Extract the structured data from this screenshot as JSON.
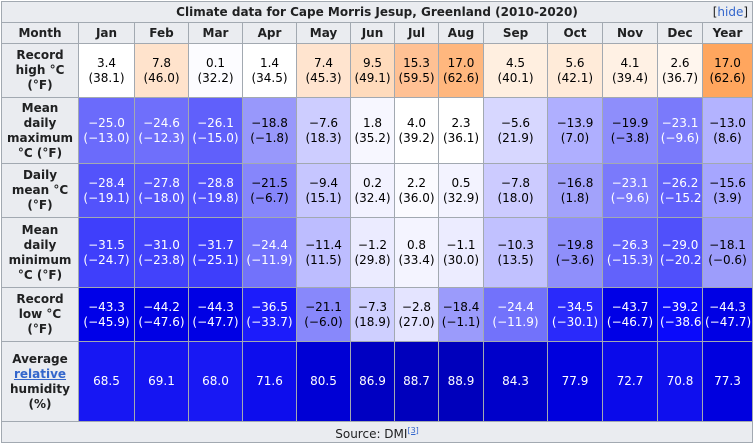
{
  "title": "Climate data for Cape Morris Jesup, Greenland (2010-2020)",
  "hide_label": "hide",
  "header": {
    "month": "Month",
    "months": [
      "Jan",
      "Feb",
      "Mar",
      "Apr",
      "May",
      "Jun",
      "Jul",
      "Aug",
      "Sep",
      "Oct",
      "Nov",
      "Dec",
      "Year"
    ]
  },
  "rows": [
    {
      "label_lines": [
        "Record",
        "high °C",
        "(°F)"
      ],
      "link_line": -1,
      "cells": [
        {
          "c": "3.4",
          "f": "(38.1)",
          "bg": "#ffffff",
          "fg": "#000000"
        },
        {
          "c": "7.8",
          "f": "(46.0)",
          "bg": "#ffe3cc",
          "fg": "#000000"
        },
        {
          "c": "0.1",
          "f": "(32.2)",
          "bg": "#fcfcff",
          "fg": "#000000"
        },
        {
          "c": "1.4",
          "f": "(34.5)",
          "bg": "#ffffff",
          "fg": "#000000"
        },
        {
          "c": "7.4",
          "f": "(45.3)",
          "bg": "#ffe4cf",
          "fg": "#000000"
        },
        {
          "c": "9.5",
          "f": "(49.1)",
          "bg": "#ffdbbc",
          "fg": "#000000"
        },
        {
          "c": "15.3",
          "f": "(59.5)",
          "bg": "#ffc194",
          "fg": "#000000"
        },
        {
          "c": "17.0",
          "f": "(62.6)",
          "bg": "#ffb77e",
          "fg": "#000000"
        },
        {
          "c": "4.5",
          "f": "(40.1)",
          "bg": "#ffefe0",
          "fg": "#000000"
        },
        {
          "c": "5.6",
          "f": "(42.1)",
          "bg": "#ffebd9",
          "fg": "#000000"
        },
        {
          "c": "4.1",
          "f": "(39.4)",
          "bg": "#fff1e4",
          "fg": "#000000"
        },
        {
          "c": "2.6",
          "f": "(36.7)",
          "bg": "#fff6ee",
          "fg": "#000000"
        },
        {
          "c": "17.0",
          "f": "(62.6)",
          "bg": "#ffa65e",
          "fg": "#000000"
        }
      ]
    },
    {
      "label_lines": [
        "Mean",
        "daily",
        "maximum",
        "°C (°F)"
      ],
      "link_line": -1,
      "cells": [
        {
          "c": "−25.0",
          "f": "(−13.0)",
          "bg": "#6b6bfb",
          "fg": "#ffffff"
        },
        {
          "c": "−24.6",
          "f": "(−12.3)",
          "bg": "#6f6ffb",
          "fg": "#ffffff"
        },
        {
          "c": "−26.1",
          "f": "(−15.0)",
          "bg": "#6060fb",
          "fg": "#ffffff"
        },
        {
          "c": "−18.8",
          "f": "(−1.8)",
          "bg": "#9898fb",
          "fg": "#000000"
        },
        {
          "c": "−7.6",
          "f": "(18.3)",
          "bg": "#cdcdff",
          "fg": "#000000"
        },
        {
          "c": "1.8",
          "f": "(35.2)",
          "bg": "#f7f7ff",
          "fg": "#000000"
        },
        {
          "c": "4.0",
          "f": "(39.2)",
          "bg": "#ffffff",
          "fg": "#000000"
        },
        {
          "c": "2.3",
          "f": "(36.1)",
          "bg": "#ffffff",
          "fg": "#000000"
        },
        {
          "c": "−5.6",
          "f": "(21.9)",
          "bg": "#d7d7ff",
          "fg": "#000000"
        },
        {
          "c": "−13.9",
          "f": "(7.0)",
          "bg": "#afafff",
          "fg": "#000000"
        },
        {
          "c": "−19.9",
          "f": "(−3.8)",
          "bg": "#8e8efb",
          "fg": "#000000"
        },
        {
          "c": "−23.1",
          "f": "(−9.6)",
          "bg": "#7a7afb",
          "fg": "#ffffff"
        },
        {
          "c": "−13.0",
          "f": "(8.6)",
          "bg": "#b3b3ff",
          "fg": "#000000"
        }
      ]
    },
    {
      "label_lines": [
        "Daily",
        "mean °C",
        "(°F)"
      ],
      "link_line": -1,
      "cells": [
        {
          "c": "−28.4",
          "f": "(−19.1)",
          "bg": "#5353fb",
          "fg": "#ffffff"
        },
        {
          "c": "−27.8",
          "f": "(−18.0)",
          "bg": "#5757fb",
          "fg": "#ffffff"
        },
        {
          "c": "−28.8",
          "f": "(−19.8)",
          "bg": "#5151fb",
          "fg": "#ffffff"
        },
        {
          "c": "−21.5",
          "f": "(−6.7)",
          "bg": "#8686fb",
          "fg": "#000000"
        },
        {
          "c": "−9.4",
          "f": "(15.1)",
          "bg": "#c6c6ff",
          "fg": "#000000"
        },
        {
          "c": "0.2",
          "f": "(32.4)",
          "bg": "#f2f2ff",
          "fg": "#000000"
        },
        {
          "c": "2.2",
          "f": "(36.0)",
          "bg": "#fbfbff",
          "fg": "#000000"
        },
        {
          "c": "0.5",
          "f": "(32.9)",
          "bg": "#f3f3ff",
          "fg": "#000000"
        },
        {
          "c": "−7.8",
          "f": "(18.0)",
          "bg": "#cccbff",
          "fg": "#000000"
        },
        {
          "c": "−16.8",
          "f": "(1.8)",
          "bg": "#a2a2fb",
          "fg": "#000000"
        },
        {
          "c": "−23.1",
          "f": "(−9.6)",
          "bg": "#7a7afb",
          "fg": "#ffffff"
        },
        {
          "c": "−26.2",
          "f": "(−15.2)",
          "bg": "#6262fb",
          "fg": "#ffffff"
        },
        {
          "c": "−15.6",
          "f": "(3.9)",
          "bg": "#a6a6ff",
          "fg": "#000000"
        }
      ]
    },
    {
      "label_lines": [
        "Mean",
        "daily",
        "minimum",
        "°C (°F)"
      ],
      "link_line": -1,
      "cells": [
        {
          "c": "−31.5",
          "f": "(−24.7)",
          "bg": "#3f3ffb",
          "fg": "#ffffff"
        },
        {
          "c": "−31.0",
          "f": "(−23.8)",
          "bg": "#4242fb",
          "fg": "#ffffff"
        },
        {
          "c": "−31.7",
          "f": "(−25.1)",
          "bg": "#3e3efb",
          "fg": "#ffffff"
        },
        {
          "c": "−24.4",
          "f": "(−11.9)",
          "bg": "#7272fb",
          "fg": "#ffffff"
        },
        {
          "c": "−11.4",
          "f": "(11.5)",
          "bg": "#bdbdff",
          "fg": "#000000"
        },
        {
          "c": "−1.2",
          "f": "(29.8)",
          "bg": "#ebebff",
          "fg": "#000000"
        },
        {
          "c": "0.8",
          "f": "(33.4)",
          "bg": "#f4f4ff",
          "fg": "#000000"
        },
        {
          "c": "−1.1",
          "f": "(30.0)",
          "bg": "#ececff",
          "fg": "#000000"
        },
        {
          "c": "−10.3",
          "f": "(13.5)",
          "bg": "#c1c1ff",
          "fg": "#000000"
        },
        {
          "c": "−19.8",
          "f": "(−3.6)",
          "bg": "#8f8ffb",
          "fg": "#000000"
        },
        {
          "c": "−26.3",
          "f": "(−15.3)",
          "bg": "#6262fb",
          "fg": "#ffffff"
        },
        {
          "c": "−29.0",
          "f": "(−20.2)",
          "bg": "#5050fb",
          "fg": "#ffffff"
        },
        {
          "c": "−18.1",
          "f": "(−0.6)",
          "bg": "#9d9dfb",
          "fg": "#000000"
        }
      ]
    },
    {
      "label_lines": [
        "Record",
        "low °C",
        "(°F)"
      ],
      "link_line": -1,
      "cells": [
        {
          "c": "−43.3",
          "f": "(−45.9)",
          "bg": "#0000e8",
          "fg": "#ffffff"
        },
        {
          "c": "−44.2",
          "f": "(−47.6)",
          "bg": "#0000e4",
          "fg": "#ffffff"
        },
        {
          "c": "−44.3",
          "f": "(−47.7)",
          "bg": "#0000e4",
          "fg": "#ffffff"
        },
        {
          "c": "−36.5",
          "f": "(−33.7)",
          "bg": "#1c1cfb",
          "fg": "#ffffff"
        },
        {
          "c": "−21.1",
          "f": "(−6.0)",
          "bg": "#8888fb",
          "fg": "#000000"
        },
        {
          "c": "−7.3",
          "f": "(18.9)",
          "bg": "#cecfff",
          "fg": "#000000"
        },
        {
          "c": "−2.8",
          "f": "(27.0)",
          "bg": "#e4e4ff",
          "fg": "#000000"
        },
        {
          "c": "−18.4",
          "f": "(−1.1)",
          "bg": "#9b9bfb",
          "fg": "#000000"
        },
        {
          "c": "−24.4",
          "f": "(−11.9)",
          "bg": "#7272fb",
          "fg": "#ffffff"
        },
        {
          "c": "−34.5",
          "f": "(−30.1)",
          "bg": "#2a2afb",
          "fg": "#ffffff"
        },
        {
          "c": "−43.7",
          "f": "(−46.7)",
          "bg": "#0000e6",
          "fg": "#ffffff"
        },
        {
          "c": "−39.2",
          "f": "(−38.6)",
          "bg": "#0a0afb",
          "fg": "#ffffff"
        },
        {
          "c": "−44.3",
          "f": "(−47.7)",
          "bg": "#0000e4",
          "fg": "#ffffff"
        }
      ]
    },
    {
      "label_lines": [
        "Average",
        "relative",
        "humidity",
        "(%)"
      ],
      "link_line": 1,
      "cells": [
        {
          "c": "68.5",
          "f": "",
          "bg": "#1717f3",
          "fg": "#ffffff"
        },
        {
          "c": "69.1",
          "f": "",
          "bg": "#1515f2",
          "fg": "#ffffff"
        },
        {
          "c": "68.0",
          "f": "",
          "bg": "#1818f4",
          "fg": "#ffffff"
        },
        {
          "c": "71.6",
          "f": "",
          "bg": "#0d0ded",
          "fg": "#ffffff"
        },
        {
          "c": "80.5",
          "f": "",
          "bg": "#0000d5",
          "fg": "#ffffff"
        },
        {
          "c": "86.9",
          "f": "",
          "bg": "#0000c2",
          "fg": "#ffffff"
        },
        {
          "c": "88.7",
          "f": "",
          "bg": "#0000bd",
          "fg": "#ffffff"
        },
        {
          "c": "88.9",
          "f": "",
          "bg": "#0000bc",
          "fg": "#ffffff"
        },
        {
          "c": "84.3",
          "f": "",
          "bg": "#0000ca",
          "fg": "#ffffff"
        },
        {
          "c": "77.9",
          "f": "",
          "bg": "#0000dd",
          "fg": "#ffffff"
        },
        {
          "c": "72.7",
          "f": "",
          "bg": "#0a0aea",
          "fg": "#ffffff"
        },
        {
          "c": "70.8",
          "f": "",
          "bg": "#0f0fee",
          "fg": "#ffffff"
        },
        {
          "c": "77.3",
          "f": "",
          "bg": "#0000df",
          "fg": "#ffffff"
        }
      ]
    }
  ],
  "source": {
    "text": "Source: DMI",
    "ref": "[3]"
  }
}
